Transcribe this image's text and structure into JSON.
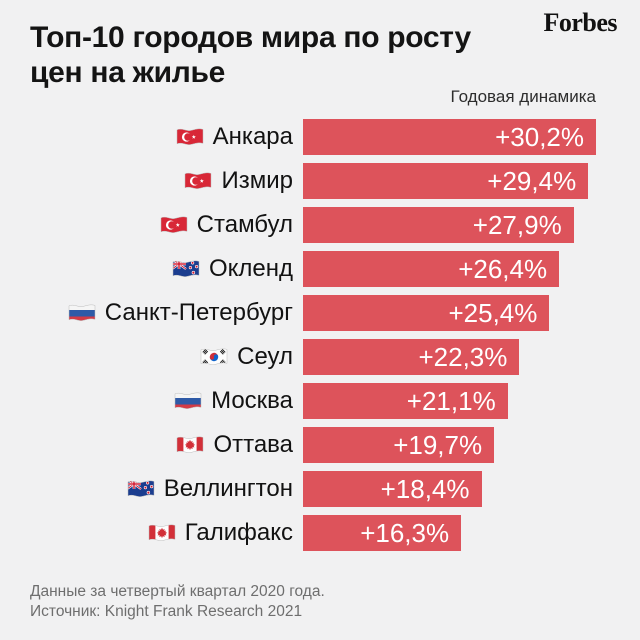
{
  "header": {
    "title_line1": "Топ-10 городов мира по росту",
    "title_line2": "цен на жилье",
    "brand": "Forbes"
  },
  "chart": {
    "axis_label": "Годовая динамика",
    "bar_color": "#dd535b",
    "rows": [
      {
        "flag": "turkey",
        "city": "Анкара",
        "value": "+30,2%",
        "pct": 30.2
      },
      {
        "flag": "turkey",
        "city": "Измир",
        "value": "+29,4%",
        "pct": 29.4
      },
      {
        "flag": "turkey",
        "city": "Стамбул",
        "value": "+27,9%",
        "pct": 27.9
      },
      {
        "flag": "new-zealand",
        "city": "Окленд",
        "value": "+26,4%",
        "pct": 26.4
      },
      {
        "flag": "russia",
        "city": "Санкт-Петербург",
        "value": "+25,4%",
        "pct": 25.4
      },
      {
        "flag": "south-korea",
        "city": "Сеул",
        "value": "+22,3%",
        "pct": 22.3
      },
      {
        "flag": "russia",
        "city": "Москва",
        "value": "+21,1%",
        "pct": 21.1
      },
      {
        "flag": "canada",
        "city": "Оттава",
        "value": "+19,7%",
        "pct": 19.7
      },
      {
        "flag": "new-zealand",
        "city": "Веллингтон",
        "value": "+18,4%",
        "pct": 18.4
      },
      {
        "flag": "canada",
        "city": "Галифакс",
        "value": "+16,3%",
        "pct": 16.3
      }
    ]
  },
  "footer": {
    "line1": "Данные за четвертый квартал 2020 года.",
    "line2": "Источник: Knight Frank Research 2021"
  },
  "colors": {
    "background": "#f1f1f2",
    "bar": "#dd535b",
    "title_text": "#141414",
    "footer_text": "#6e6e6e"
  },
  "chart_data": {
    "type": "bar",
    "orientation": "horizontal",
    "title": "Топ-10 городов мира по росту цен на жилье",
    "annotation": "Годовая динамика",
    "categories": [
      "Анкара",
      "Измир",
      "Стамбул",
      "Окленд",
      "Санкт-Петербург",
      "Сеул",
      "Москва",
      "Оттава",
      "Веллингтон",
      "Галифакс"
    ],
    "values": [
      30.2,
      29.4,
      27.9,
      26.4,
      25.4,
      22.3,
      21.1,
      19.7,
      18.4,
      16.3
    ],
    "value_labels": [
      "+30,2%",
      "+29,4%",
      "+27,9%",
      "+26,4%",
      "+25,4%",
      "+22,3%",
      "+21,1%",
      "+19,7%",
      "+18,4%",
      "+16,3%"
    ],
    "countries": [
      "turkey",
      "turkey",
      "turkey",
      "new-zealand",
      "russia",
      "south-korea",
      "russia",
      "canada",
      "new-zealand",
      "canada"
    ],
    "unit": "percent, year-over-year",
    "xlim": [
      0,
      30.2
    ],
    "grid": false,
    "legend": false,
    "bar_color": "#dd535b",
    "note": "Данные за четвертый квартал 2020 года.",
    "source": "Источник: Knight Frank Research 2021"
  }
}
